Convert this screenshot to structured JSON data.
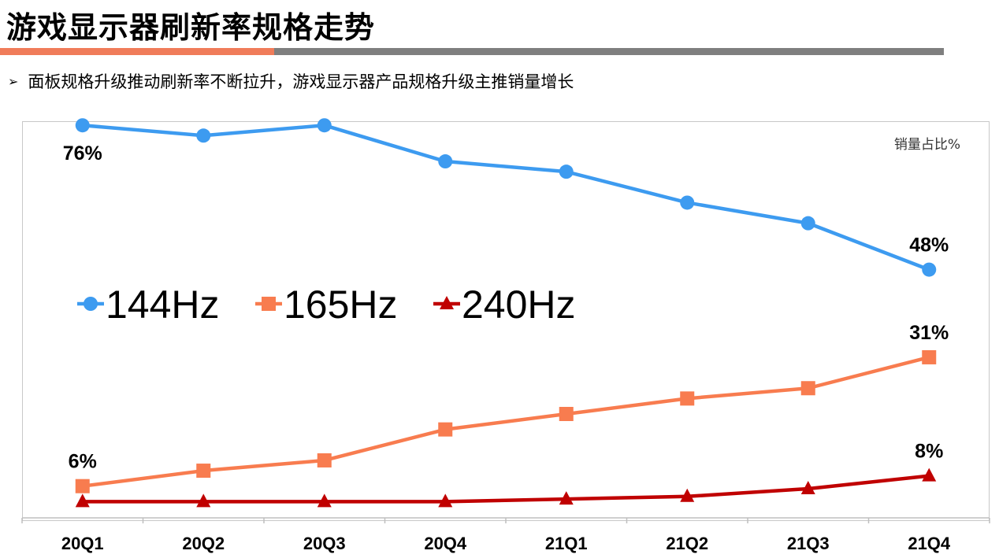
{
  "header": {
    "title": "游戏显示器刷新率规格走势",
    "bullet_icon": "arrow-bullet-icon",
    "subtitle": "面板规格升级推动刷新率不断拉升，游戏显示器产品规格升级主推销量增长"
  },
  "chart_data": {
    "type": "line",
    "title": "",
    "xlabel": "",
    "ylabel": "",
    "unit_label": "销量占比%",
    "categories": [
      "20Q1",
      "20Q2",
      "20Q3",
      "20Q4",
      "21Q1",
      "21Q2",
      "21Q3",
      "21Q4"
    ],
    "ylim": [
      0,
      80
    ],
    "grid": false,
    "legend_position": "middle-left",
    "series": [
      {
        "name": "144Hz",
        "color": "#3d9bf0",
        "marker": "circle",
        "values": [
          76,
          74,
          76,
          69,
          67,
          61,
          57,
          48
        ],
        "data_labels": [
          {
            "index": 0,
            "text": "76%",
            "position": "below"
          },
          {
            "index": 7,
            "text": "48%",
            "position": "above"
          }
        ]
      },
      {
        "name": "165Hz",
        "color": "#f87c4f",
        "marker": "square",
        "values": [
          6,
          9,
          11,
          17,
          20,
          23,
          25,
          31
        ],
        "data_labels": [
          {
            "index": 0,
            "text": "6%",
            "position": "above"
          },
          {
            "index": 7,
            "text": "31%",
            "position": "above"
          }
        ]
      },
      {
        "name": "240Hz",
        "color": "#c00000",
        "marker": "triangle",
        "values": [
          3,
          3,
          3,
          3,
          3.5,
          4,
          5.5,
          8
        ],
        "data_labels": [
          {
            "index": 7,
            "text": "8%",
            "position": "above"
          }
        ]
      }
    ]
  }
}
